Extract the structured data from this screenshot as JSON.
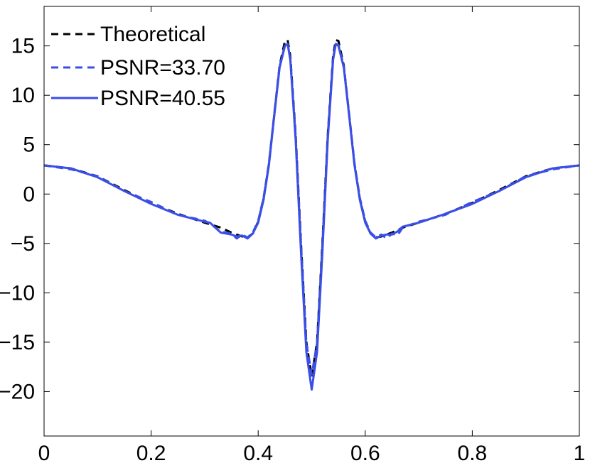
{
  "chart_data": {
    "type": "line",
    "title": "",
    "xlabel": "",
    "ylabel": "",
    "xlim": [
      0,
      1
    ],
    "ylim": [
      -24.5,
      19
    ],
    "xticks": [
      0,
      0.2,
      0.4,
      0.6,
      0.8,
      1
    ],
    "xtick_labels": [
      "0",
      "0.2",
      "0.4",
      "0.6",
      "0.8",
      "1"
    ],
    "yticks": [
      15,
      10,
      5,
      0,
      -5,
      -10,
      -15,
      -20
    ],
    "ytick_labels": [
      "15",
      "10",
      "5",
      "0",
      "−5",
      "−10",
      "−15",
      "−20"
    ],
    "grid": false,
    "legend_position": "top-left",
    "series": [
      {
        "name": "Theoretical",
        "color": "#000000",
        "style": "dashed",
        "x": [
          0,
          0.05,
          0.1,
          0.15,
          0.2,
          0.25,
          0.3,
          0.33,
          0.35,
          0.37,
          0.38,
          0.39,
          0.4,
          0.41,
          0.42,
          0.43,
          0.44,
          0.45,
          0.455,
          0.46,
          0.47,
          0.48,
          0.49,
          0.5,
          0.51,
          0.52,
          0.53,
          0.54,
          0.545,
          0.55,
          0.56,
          0.57,
          0.58,
          0.59,
          0.6,
          0.61,
          0.62,
          0.63,
          0.65,
          0.67,
          0.7,
          0.75,
          0.8,
          0.85,
          0.9,
          0.95,
          1
        ],
        "y": [
          2.9,
          2.6,
          1.8,
          0.4,
          -0.9,
          -2.0,
          -2.9,
          -3.4,
          -3.9,
          -4.3,
          -4.4,
          -4.0,
          -2.8,
          -0.5,
          3.0,
          8.0,
          13.0,
          15.5,
          15.6,
          14.0,
          6.0,
          -5.0,
          -15.0,
          -18.5,
          -15.0,
          -5.0,
          6.0,
          14.0,
          15.6,
          15.5,
          13.0,
          8.0,
          3.0,
          -0.5,
          -2.8,
          -4.0,
          -4.4,
          -4.3,
          -3.9,
          -3.4,
          -2.9,
          -2.0,
          -0.9,
          0.4,
          1.8,
          2.6,
          2.9
        ]
      },
      {
        "name": "PSNR=33.70",
        "color": "#3a4ee8",
        "style": "dashed",
        "x": [
          0,
          0.05,
          0.1,
          0.15,
          0.2,
          0.25,
          0.3,
          0.31,
          0.33,
          0.35,
          0.36,
          0.37,
          0.38,
          0.39,
          0.4,
          0.41,
          0.42,
          0.43,
          0.44,
          0.45,
          0.455,
          0.46,
          0.47,
          0.48,
          0.49,
          0.5,
          0.51,
          0.52,
          0.53,
          0.54,
          0.545,
          0.55,
          0.56,
          0.57,
          0.58,
          0.59,
          0.6,
          0.61,
          0.62,
          0.63,
          0.64,
          0.65,
          0.66,
          0.67,
          0.7,
          0.75,
          0.8,
          0.85,
          0.9,
          0.95,
          1
        ],
        "y": [
          2.9,
          2.5,
          1.8,
          0.3,
          -0.8,
          -2.1,
          -2.7,
          -3.0,
          -3.8,
          -4.0,
          -4.5,
          -4.1,
          -4.4,
          -3.9,
          -2.7,
          -0.4,
          3.1,
          8.1,
          12.9,
          15.1,
          15.2,
          13.8,
          5.9,
          -5.1,
          -15.1,
          -18.3,
          -15.1,
          -5.1,
          5.9,
          13.8,
          15.2,
          15.1,
          12.9,
          8.1,
          3.1,
          -0.4,
          -2.7,
          -3.9,
          -4.4,
          -4.1,
          -4.5,
          -4.0,
          -4.2,
          -3.4,
          -2.8,
          -2.1,
          -0.8,
          0.3,
          1.8,
          2.5,
          2.9
        ]
      },
      {
        "name": "PSNR=40.55",
        "color": "#3a4ee8",
        "style": "solid",
        "x": [
          0,
          0.05,
          0.1,
          0.15,
          0.2,
          0.25,
          0.3,
          0.31,
          0.33,
          0.35,
          0.36,
          0.37,
          0.38,
          0.39,
          0.4,
          0.41,
          0.42,
          0.43,
          0.44,
          0.45,
          0.455,
          0.46,
          0.47,
          0.48,
          0.49,
          0.5,
          0.51,
          0.52,
          0.53,
          0.54,
          0.545,
          0.55,
          0.56,
          0.57,
          0.58,
          0.59,
          0.6,
          0.61,
          0.62,
          0.63,
          0.64,
          0.65,
          0.66,
          0.67,
          0.7,
          0.75,
          0.8,
          0.85,
          0.9,
          0.95,
          1
        ],
        "y": [
          2.9,
          2.6,
          1.7,
          0.3,
          -1.0,
          -2.1,
          -2.8,
          -2.9,
          -3.9,
          -4.1,
          -4.3,
          -4.2,
          -4.5,
          -4.0,
          -2.9,
          -0.6,
          2.9,
          7.9,
          12.8,
          15.0,
          15.2,
          13.6,
          5.5,
          -5.9,
          -16.0,
          -19.8,
          -16.0,
          -5.9,
          5.5,
          13.6,
          15.2,
          15.0,
          12.8,
          7.9,
          2.9,
          -0.6,
          -2.9,
          -4.0,
          -4.5,
          -4.2,
          -4.1,
          -4.1,
          -3.8,
          -3.3,
          -2.9,
          -2.0,
          -1.0,
          0.3,
          1.7,
          2.6,
          2.9
        ]
      }
    ]
  }
}
